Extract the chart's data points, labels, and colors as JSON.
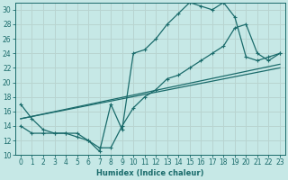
{
  "xlabel": "Humidex (Indice chaleur)",
  "xlim": [
    -0.5,
    23.5
  ],
  "ylim": [
    10,
    31
  ],
  "xticks": [
    0,
    1,
    2,
    3,
    4,
    5,
    6,
    7,
    8,
    9,
    10,
    11,
    12,
    13,
    14,
    15,
    16,
    17,
    18,
    19,
    20,
    21,
    22,
    23
  ],
  "yticks": [
    10,
    12,
    14,
    16,
    18,
    20,
    22,
    24,
    26,
    28,
    30
  ],
  "bg_color": "#c6e8e6",
  "grid_color": "#b8d4d0",
  "line_color": "#1a6b6b",
  "line1_x": [
    0,
    1,
    2,
    3,
    4,
    5,
    6,
    7,
    8,
    9,
    10,
    11,
    12,
    13,
    14,
    15,
    16,
    17,
    18,
    19,
    20,
    21,
    22,
    23
  ],
  "line1_y": [
    17,
    15,
    13.5,
    13,
    13,
    13,
    12,
    10.5,
    17,
    13.5,
    24,
    24.5,
    26,
    28,
    29.5,
    31,
    30.5,
    30,
    31,
    29,
    23.5,
    23,
    23.5,
    24
  ],
  "line2_x": [
    0,
    1,
    2,
    3,
    4,
    5,
    6,
    7,
    8,
    9,
    10,
    11,
    12,
    13,
    14,
    15,
    16,
    17,
    18,
    19,
    20,
    21,
    22,
    23
  ],
  "line2_y": [
    14,
    13,
    13,
    13,
    13,
    12.5,
    12,
    11,
    11,
    14,
    16.5,
    18,
    19,
    20.5,
    21,
    22,
    23,
    24,
    25,
    27.5,
    28,
    24,
    23,
    24
  ],
  "line3_x": [
    0,
    23
  ],
  "line3_y": [
    15,
    22
  ],
  "line4_x": [
    0,
    23
  ],
  "line4_y": [
    15,
    22.5
  ]
}
